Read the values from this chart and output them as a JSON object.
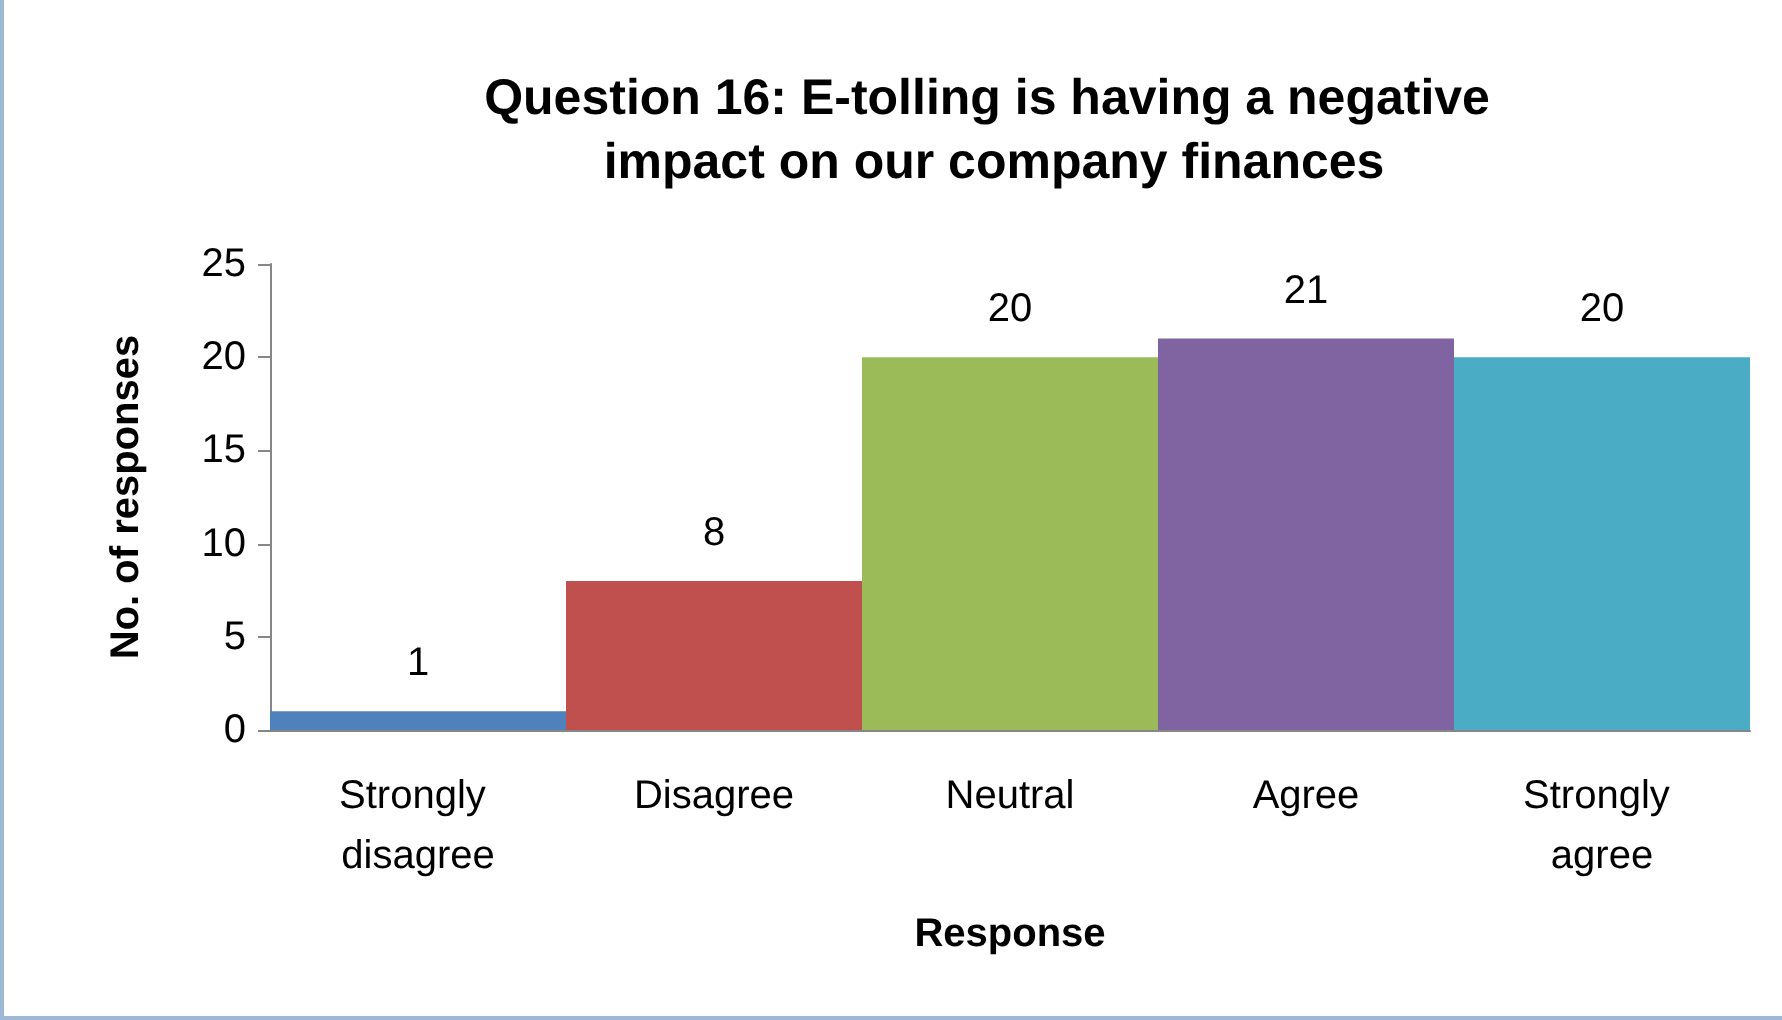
{
  "chart_data": {
    "type": "bar",
    "title": "Question 16: E-tolling is having a negative impact on our company finances",
    "xlabel": "Response",
    "ylabel": "No. of responses",
    "categories": [
      "Strongly disagree",
      "Disagree",
      "Neutral",
      "Agree",
      "Strongly agree"
    ],
    "values": [
      1,
      8,
      20,
      21,
      20
    ],
    "colors": [
      "#4f81bd",
      "#c0504d",
      "#9bbb59",
      "#8064a2",
      "#4bacc6"
    ],
    "ylim": [
      0,
      25
    ],
    "yticks": [
      0,
      5,
      10,
      15,
      20,
      25
    ],
    "grid": false,
    "data_labels": true
  }
}
